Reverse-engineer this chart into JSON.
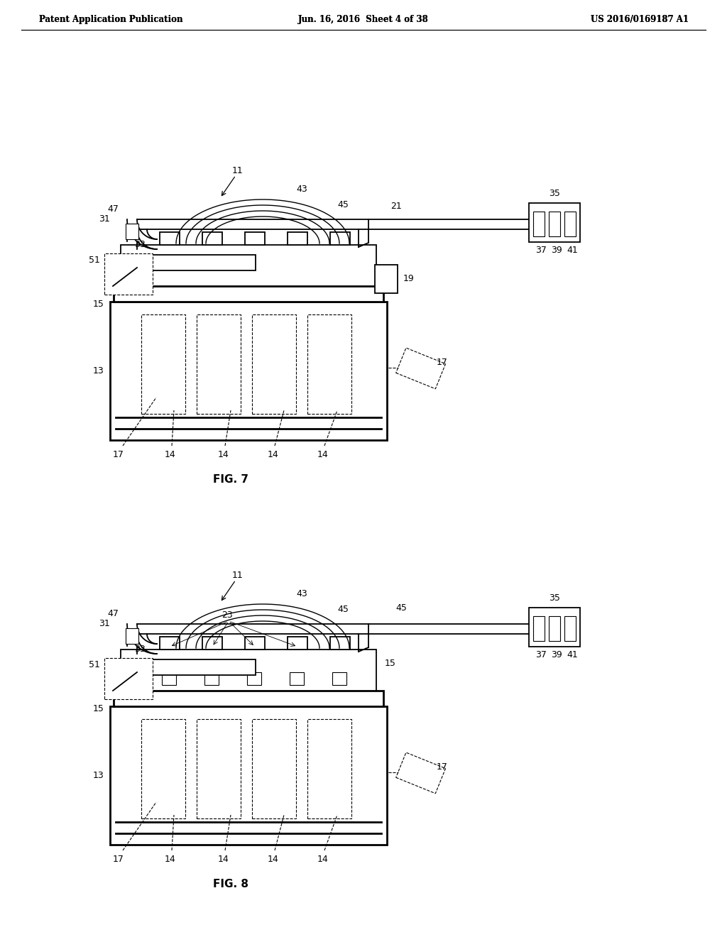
{
  "bg_color": "#ffffff",
  "header_left": "Patent Application Publication",
  "header_center": "Jun. 16, 2016  Sheet 4 of 38",
  "header_right": "US 2016/0169187 A1",
  "fig7_label": "FIG. 7",
  "fig8_label": "FIG. 8"
}
